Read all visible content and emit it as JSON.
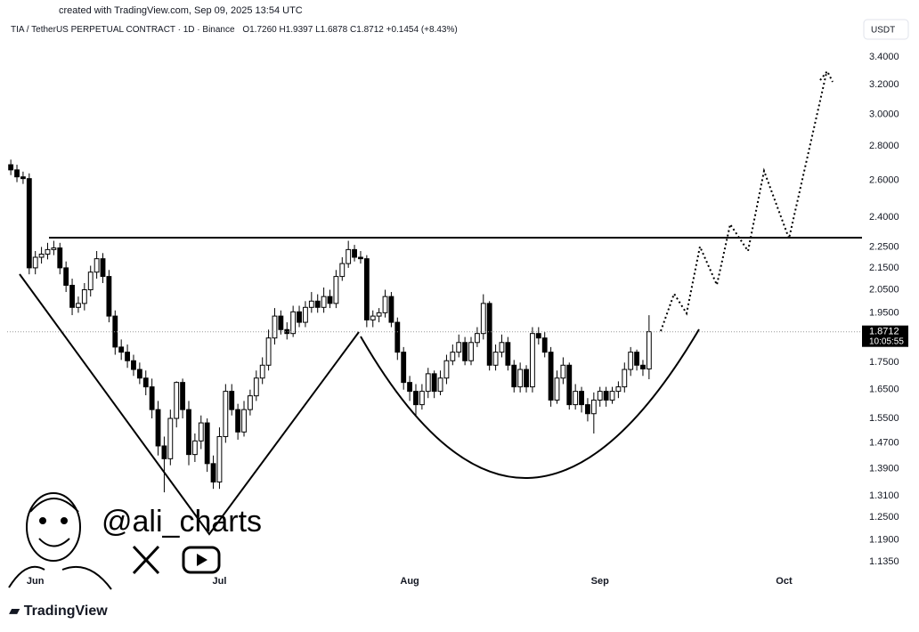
{
  "credit": "created with TradingView.com, Sep 09, 2025 13:54 UTC",
  "header": {
    "symbol": "TIA / TetherUS PERPETUAL CONTRACT · 1D · Binance",
    "open": "O1.7260",
    "high": "H1.9397",
    "low": "L1.6878",
    "close": "C1.8712",
    "change": "+0.1454 (+8.43%)"
  },
  "currency": "USDT",
  "countdown": "10:05:55",
  "watermark": "@ali_charts",
  "brand": "TradingView",
  "chart_data": {
    "type": "candlestick",
    "log_scale": true,
    "up_color": "#ffffff",
    "down_color": "#000000",
    "xlim": [
      -0.6,
      138.7
    ],
    "xticks": [
      {
        "value": 4,
        "label": "Jun"
      },
      {
        "value": 34,
        "label": "Jul"
      },
      {
        "value": 65,
        "label": "Aug"
      },
      {
        "value": 96,
        "label": "Sep"
      },
      {
        "value": 126,
        "label": "Oct"
      }
    ],
    "ylim": [
      1.105,
      3.527
    ],
    "yticks": [
      {
        "value": 1.135,
        "label": "1.1350"
      },
      {
        "value": 1.19,
        "label": "1.1900"
      },
      {
        "value": 1.25,
        "label": "1.2500"
      },
      {
        "value": 1.31,
        "label": "1.3100"
      },
      {
        "value": 1.39,
        "label": "1.3900"
      },
      {
        "value": 1.47,
        "label": "1.4700"
      },
      {
        "value": 1.55,
        "label": "1.5500"
      },
      {
        "value": 1.65,
        "label": "1.6500"
      },
      {
        "value": 1.75,
        "label": "1.7500"
      },
      {
        "value": 1.95,
        "label": "1.9500"
      },
      {
        "value": 2.05,
        "label": "2.0500"
      },
      {
        "value": 2.15,
        "label": "2.1500"
      },
      {
        "value": 2.25,
        "label": "2.2500"
      },
      {
        "value": 2.4,
        "label": "2.4000"
      },
      {
        "value": 2.6,
        "label": "2.6000"
      },
      {
        "value": 2.8,
        "label": "2.8000"
      },
      {
        "value": 3.0,
        "label": "3.0000"
      },
      {
        "value": 3.2,
        "label": "3.2000"
      },
      {
        "value": 3.4,
        "label": "3.4000"
      }
    ],
    "candles": [
      [
        2.69,
        2.72,
        2.63,
        2.66
      ],
      [
        2.66,
        2.69,
        2.59,
        2.62
      ],
      [
        2.62,
        2.65,
        2.58,
        2.61
      ],
      [
        2.61,
        2.64,
        2.12,
        2.15
      ],
      [
        2.15,
        2.23,
        2.12,
        2.2
      ],
      [
        2.2,
        2.25,
        2.17,
        2.215
      ],
      [
        2.215,
        2.27,
        2.19,
        2.237
      ],
      [
        2.237,
        2.28,
        2.21,
        2.245
      ],
      [
        2.245,
        2.27,
        2.12,
        2.15
      ],
      [
        2.15,
        2.18,
        2.04,
        2.07
      ],
      [
        2.07,
        2.1,
        1.94,
        1.973
      ],
      [
        1.973,
        2.02,
        1.95,
        1.99
      ],
      [
        1.99,
        2.08,
        1.96,
        2.05
      ],
      [
        2.05,
        2.16,
        2.02,
        2.13
      ],
      [
        2.13,
        2.23,
        2.1,
        2.193
      ],
      [
        2.193,
        2.22,
        2.08,
        2.11
      ],
      [
        2.11,
        2.14,
        1.91,
        1.936
      ],
      [
        1.936,
        1.96,
        1.78,
        1.81
      ],
      [
        1.81,
        1.84,
        1.76,
        1.79
      ],
      [
        1.79,
        1.82,
        1.73,
        1.757
      ],
      [
        1.757,
        1.78,
        1.7,
        1.724
      ],
      [
        1.724,
        1.75,
        1.67,
        1.692
      ],
      [
        1.692,
        1.72,
        1.63,
        1.66
      ],
      [
        1.66,
        1.69,
        1.55,
        1.58
      ],
      [
        1.58,
        1.61,
        1.43,
        1.46
      ],
      [
        1.46,
        1.49,
        1.32,
        1.42
      ],
      [
        1.42,
        1.58,
        1.4,
        1.55
      ],
      [
        1.55,
        1.68,
        1.52,
        1.676
      ],
      [
        1.676,
        1.69,
        1.55,
        1.58
      ],
      [
        1.58,
        1.61,
        1.4,
        1.433
      ],
      [
        1.433,
        1.5,
        1.41,
        1.476
      ],
      [
        1.476,
        1.56,
        1.45,
        1.535
      ],
      [
        1.535,
        1.55,
        1.38,
        1.405
      ],
      [
        1.405,
        1.43,
        1.33,
        1.35
      ],
      [
        1.35,
        1.52,
        1.33,
        1.49
      ],
      [
        1.49,
        1.67,
        1.47,
        1.644
      ],
      [
        1.644,
        1.67,
        1.56,
        1.58
      ],
      [
        1.58,
        1.6,
        1.48,
        1.505
      ],
      [
        1.505,
        1.61,
        1.49,
        1.58
      ],
      [
        1.58,
        1.65,
        1.56,
        1.628
      ],
      [
        1.628,
        1.72,
        1.61,
        1.692
      ],
      [
        1.692,
        1.77,
        1.67,
        1.74
      ],
      [
        1.74,
        1.88,
        1.72,
        1.846
      ],
      [
        1.846,
        1.97,
        1.82,
        1.936
      ],
      [
        1.936,
        1.96,
        1.86,
        1.88
      ],
      [
        1.88,
        1.91,
        1.84,
        1.864
      ],
      [
        1.864,
        1.98,
        1.85,
        1.954
      ],
      [
        1.954,
        1.98,
        1.89,
        1.91
      ],
      [
        1.91,
        2.0,
        1.89,
        1.973
      ],
      [
        1.973,
        2.04,
        1.95,
        2.0
      ],
      [
        2.0,
        2.03,
        1.95,
        1.973
      ],
      [
        1.973,
        2.06,
        1.95,
        2.02
      ],
      [
        2.02,
        2.05,
        1.97,
        1.99
      ],
      [
        1.99,
        2.14,
        1.97,
        2.11
      ],
      [
        2.11,
        2.2,
        2.09,
        2.17
      ],
      [
        2.17,
        2.28,
        2.15,
        2.237
      ],
      [
        2.237,
        2.26,
        2.18,
        2.2
      ],
      [
        2.2,
        2.23,
        2.17,
        2.193
      ],
      [
        2.193,
        2.21,
        1.89,
        1.92
      ],
      [
        1.92,
        1.96,
        1.89,
        1.936
      ],
      [
        1.936,
        1.97,
        1.91,
        1.95
      ],
      [
        1.95,
        2.05,
        1.93,
        2.02
      ],
      [
        2.02,
        2.04,
        1.89,
        1.91
      ],
      [
        1.91,
        1.93,
        1.76,
        1.79
      ],
      [
        1.79,
        1.81,
        1.65,
        1.676
      ],
      [
        1.676,
        1.7,
        1.61,
        1.644
      ],
      [
        1.644,
        1.67,
        1.56,
        1.597
      ],
      [
        1.597,
        1.67,
        1.58,
        1.644
      ],
      [
        1.644,
        1.73,
        1.62,
        1.708
      ],
      [
        1.708,
        1.72,
        1.62,
        1.644
      ],
      [
        1.644,
        1.72,
        1.63,
        1.692
      ],
      [
        1.692,
        1.78,
        1.67,
        1.757
      ],
      [
        1.757,
        1.82,
        1.74,
        1.79
      ],
      [
        1.79,
        1.86,
        1.77,
        1.828
      ],
      [
        1.828,
        1.85,
        1.74,
        1.757
      ],
      [
        1.757,
        1.85,
        1.74,
        1.828
      ],
      [
        1.828,
        1.89,
        1.81,
        1.864
      ],
      [
        1.864,
        2.03,
        1.84,
        1.99
      ],
      [
        1.99,
        2.0,
        1.72,
        1.74
      ],
      [
        1.74,
        1.82,
        1.72,
        1.79
      ],
      [
        1.79,
        1.86,
        1.77,
        1.828
      ],
      [
        1.828,
        1.85,
        1.72,
        1.74
      ],
      [
        1.74,
        1.76,
        1.64,
        1.66
      ],
      [
        1.66,
        1.75,
        1.64,
        1.724
      ],
      [
        1.724,
        1.74,
        1.64,
        1.66
      ],
      [
        1.66,
        1.89,
        1.64,
        1.864
      ],
      [
        1.864,
        1.89,
        1.82,
        1.846
      ],
      [
        1.846,
        1.87,
        1.77,
        1.79
      ],
      [
        1.79,
        1.81,
        1.59,
        1.613
      ],
      [
        1.613,
        1.72,
        1.6,
        1.692
      ],
      [
        1.692,
        1.77,
        1.67,
        1.74
      ],
      [
        1.74,
        1.75,
        1.58,
        1.597
      ],
      [
        1.597,
        1.67,
        1.58,
        1.644
      ],
      [
        1.644,
        1.66,
        1.57,
        1.597
      ],
      [
        1.597,
        1.62,
        1.54,
        1.566
      ],
      [
        1.566,
        1.64,
        1.5,
        1.613
      ],
      [
        1.613,
        1.66,
        1.59,
        1.644
      ],
      [
        1.644,
        1.66,
        1.59,
        1.613
      ],
      [
        1.613,
        1.66,
        1.6,
        1.644
      ],
      [
        1.644,
        1.68,
        1.62,
        1.66
      ],
      [
        1.66,
        1.75,
        1.64,
        1.724
      ],
      [
        1.724,
        1.81,
        1.7,
        1.79
      ],
      [
        1.79,
        1.8,
        1.72,
        1.74
      ],
      [
        1.74,
        1.76,
        1.7,
        1.726
      ],
      [
        1.726,
        1.9397,
        1.6878,
        1.8712
      ]
    ]
  }
}
